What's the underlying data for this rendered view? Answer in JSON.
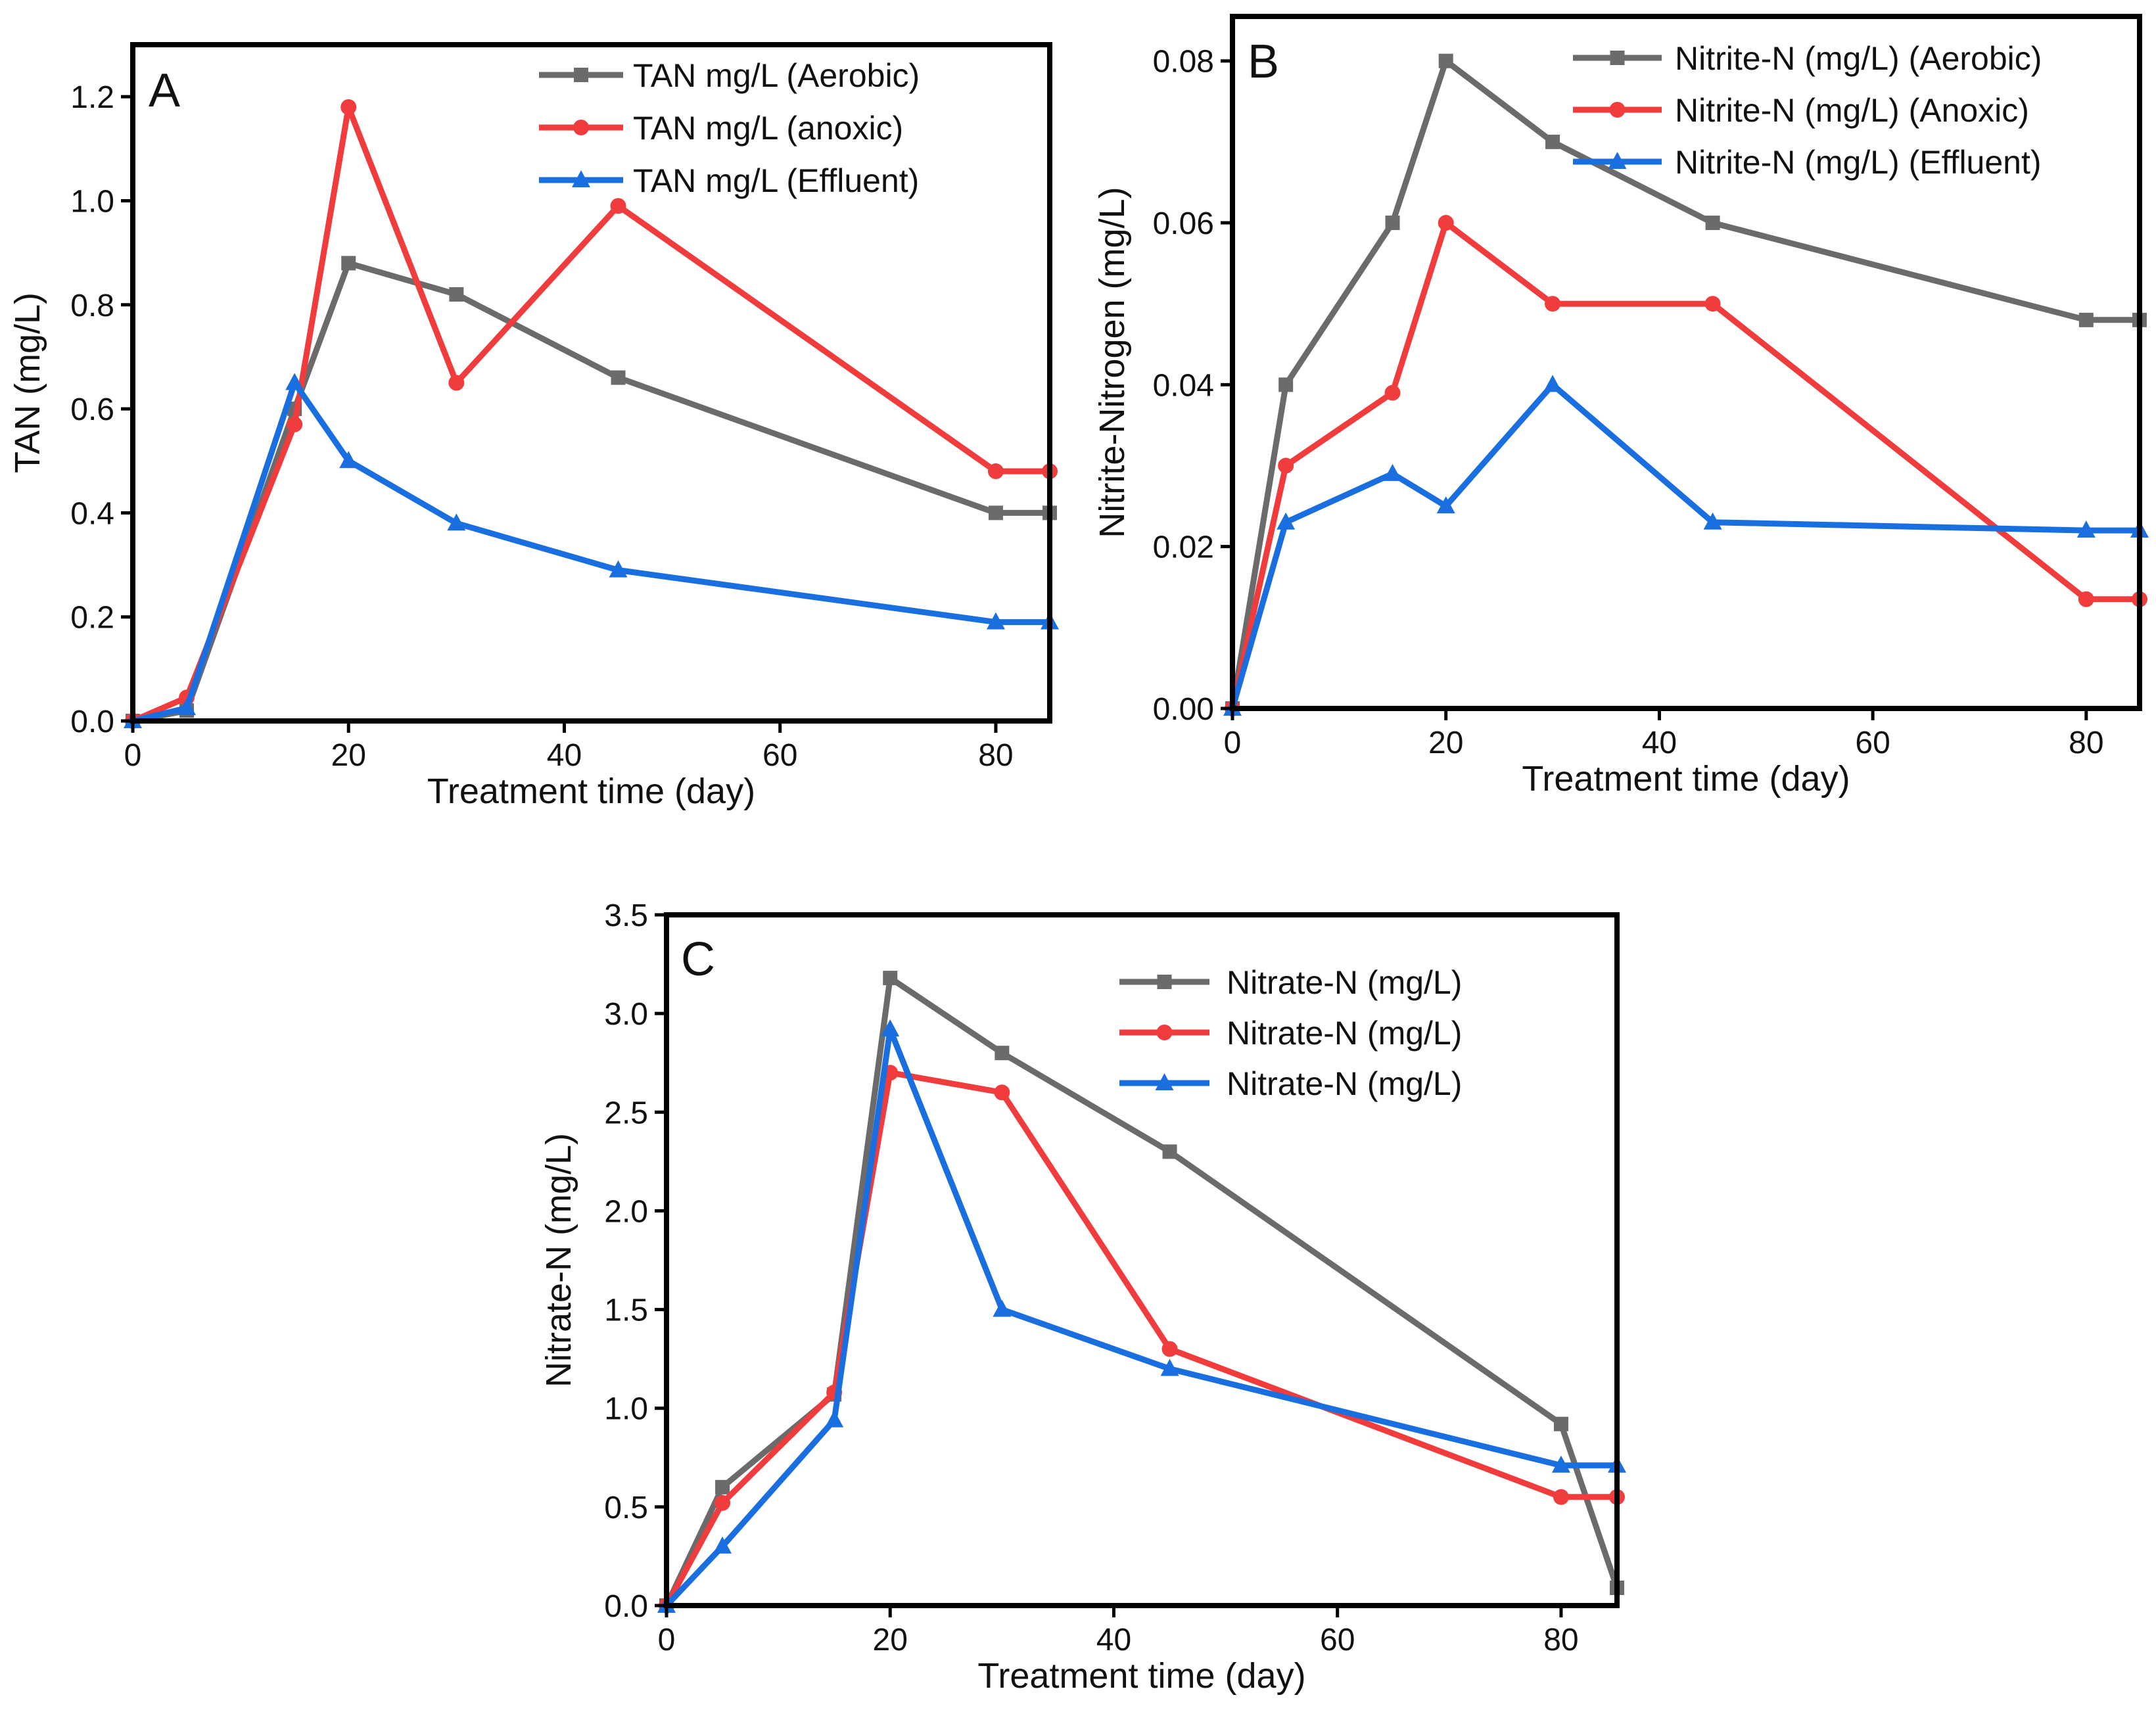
{
  "chart_data": [
    {
      "panel": "A",
      "type": "line",
      "xlabel": "Treatment time (day)",
      "ylabel": "TAN (mg/L)",
      "xlim": [
        0,
        85
      ],
      "ylim": [
        0,
        1.3
      ],
      "xticks": [
        0,
        20,
        40,
        60,
        80
      ],
      "xtick_labels": [
        "0",
        "20",
        "40",
        "60",
        "80"
      ],
      "yticks": [
        0,
        0.2,
        0.4,
        0.6,
        0.8,
        1.0,
        1.2
      ],
      "ytick_labels": [
        "0.0",
        "0.2",
        "0.4",
        "0.6",
        "0.8",
        "1.0",
        "1.2"
      ],
      "legend_position": "top-right",
      "x": [
        0,
        5,
        15,
        20,
        30,
        45,
        80,
        85
      ],
      "series": [
        {
          "name": "TAN mg/L (Aerobic)",
          "color": "#6b6b6b",
          "marker": "square",
          "values": [
            0,
            0.02,
            0.6,
            0.88,
            0.82,
            0.66,
            0.4,
            0.4
          ]
        },
        {
          "name": "TAN mg/L (anoxic)",
          "color": "#f03c3c",
          "marker": "circle",
          "values": [
            0,
            0.045,
            0.57,
            1.18,
            0.65,
            0.99,
            0.48,
            0.48
          ]
        },
        {
          "name": "TAN mg/L (Effluent)",
          "color": "#1a6fe0",
          "marker": "triangle",
          "values": [
            0,
            0.025,
            0.65,
            0.5,
            0.38,
            0.29,
            0.19,
            0.19
          ]
        }
      ]
    },
    {
      "panel": "B",
      "type": "line",
      "xlabel": "Treatment time (day)",
      "ylabel": "Nitrite-Nitrogen (mg/L)",
      "xlim": [
        0,
        85
      ],
      "ylim": [
        0,
        0.0855
      ],
      "xticks": [
        0,
        20,
        40,
        60,
        80
      ],
      "xtick_labels": [
        "0",
        "20",
        "40",
        "60",
        "80"
      ],
      "yticks": [
        0,
        0.02,
        0.04,
        0.06,
        0.08
      ],
      "ytick_labels": [
        "0.00",
        "0.02",
        "0.04",
        "0.06",
        "0.08"
      ],
      "legend_position": "top-right",
      "x": [
        0,
        5,
        15,
        20,
        30,
        45,
        80,
        85
      ],
      "series": [
        {
          "name": "Nitrite-N (mg/L) (Aerobic)",
          "color": "#6b6b6b",
          "marker": "square",
          "values": [
            0,
            0.04,
            0.06,
            0.08,
            0.07,
            0.06,
            0.048,
            0.048
          ]
        },
        {
          "name": "Nitrite-N (mg/L) (Anoxic)",
          "color": "#f03c3c",
          "marker": "circle",
          "values": [
            0,
            0.03,
            0.039,
            0.06,
            0.05,
            0.05,
            0.0135,
            0.0135
          ]
        },
        {
          "name": "Nitrite-N (mg/L) (Effluent)",
          "color": "#1a6fe0",
          "marker": "triangle",
          "values": [
            0,
            0.023,
            0.029,
            0.025,
            0.04,
            0.023,
            0.022,
            0.022
          ]
        }
      ]
    },
    {
      "panel": "C",
      "type": "line",
      "xlabel": "Treatment time (day)",
      "ylabel": "Nitrate-N (mg/L)",
      "xlim": [
        0,
        85
      ],
      "ylim": [
        0,
        3.5
      ],
      "xticks": [
        0,
        20,
        40,
        60,
        80
      ],
      "xtick_labels": [
        "0",
        "20",
        "40",
        "60",
        "80"
      ],
      "yticks": [
        0,
        0.5,
        1.0,
        1.5,
        2.0,
        2.5,
        3.0,
        3.5
      ],
      "ytick_labels": [
        "0.0",
        "0.5",
        "1.0",
        "1.5",
        "2.0",
        "2.5",
        "3.0",
        "3.5"
      ],
      "legend_position": "top-right",
      "x": [
        0,
        5,
        15,
        20,
        30,
        45,
        80,
        85
      ],
      "series": [
        {
          "name": "Nitrate-N (mg/L)",
          "color": "#6b6b6b",
          "marker": "square",
          "values": [
            0,
            0.6,
            1.07,
            3.18,
            2.8,
            2.3,
            0.92,
            0.09
          ]
        },
        {
          "name": "Nitrate-N (mg/L)",
          "color": "#f03c3c",
          "marker": "circle",
          "values": [
            0,
            0.52,
            1.08,
            2.7,
            2.6,
            1.3,
            0.55,
            0.55
          ]
        },
        {
          "name": "Nitrate-N (mg/L)",
          "color": "#1a6fe0",
          "marker": "triangle",
          "values": [
            0,
            0.3,
            0.94,
            2.92,
            1.5,
            1.2,
            0.71,
            0.71
          ]
        }
      ]
    }
  ]
}
